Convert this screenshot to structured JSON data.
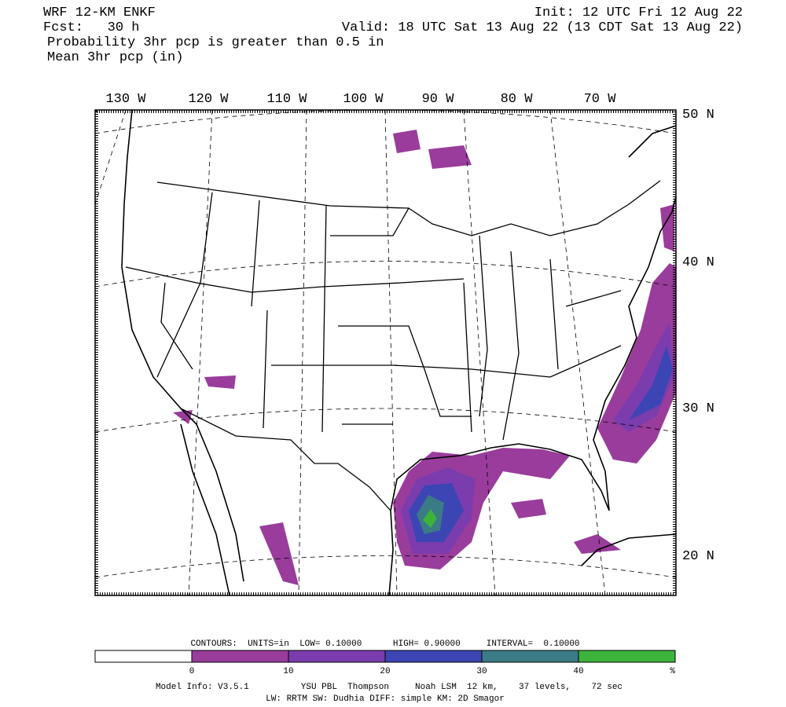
{
  "header": {
    "model": "WRF 12-KM ENKF",
    "init": "Init: 12 UTC Fri 12 Aug 22",
    "forecast": "Fcst:   30 h",
    "valid": "Valid: 18 UTC Sat 13 Aug 22 (13 CDT Sat 13 Aug 22)",
    "field1": "Probability 3hr pcp is greater than 0.5 in",
    "field2": "Mean 3hr pcp (in)"
  },
  "map": {
    "longitude_labels": [
      "130 W",
      "120 W",
      "110 W",
      "100 W",
      "90 W",
      "80 W",
      "70 W"
    ],
    "latitude_labels": [
      "50 N",
      "40 N",
      "30 N",
      "20 N"
    ]
  },
  "contours": "CONTOURS:  UNITS=in  LOW= 0.10000      HIGH= 0.90000     INTERVAL=  0.10000",
  "colorbar": {
    "colors": [
      "#ffffff",
      "#9a3c9c",
      "#7b3cae",
      "#3c45b4",
      "#3a7b86",
      "#3cb43c"
    ],
    "labels": [
      0,
      10,
      20,
      30,
      40,
      "%"
    ]
  },
  "model_info": [
    "Model Info: V3.5.1          YSU PBL  Thompson     Noah LSM  12 km,    37 levels,    72 sec",
    "LW: RRTM SW: Dudhia  DIFF: simple KM: 2D Smagor"
  ]
}
